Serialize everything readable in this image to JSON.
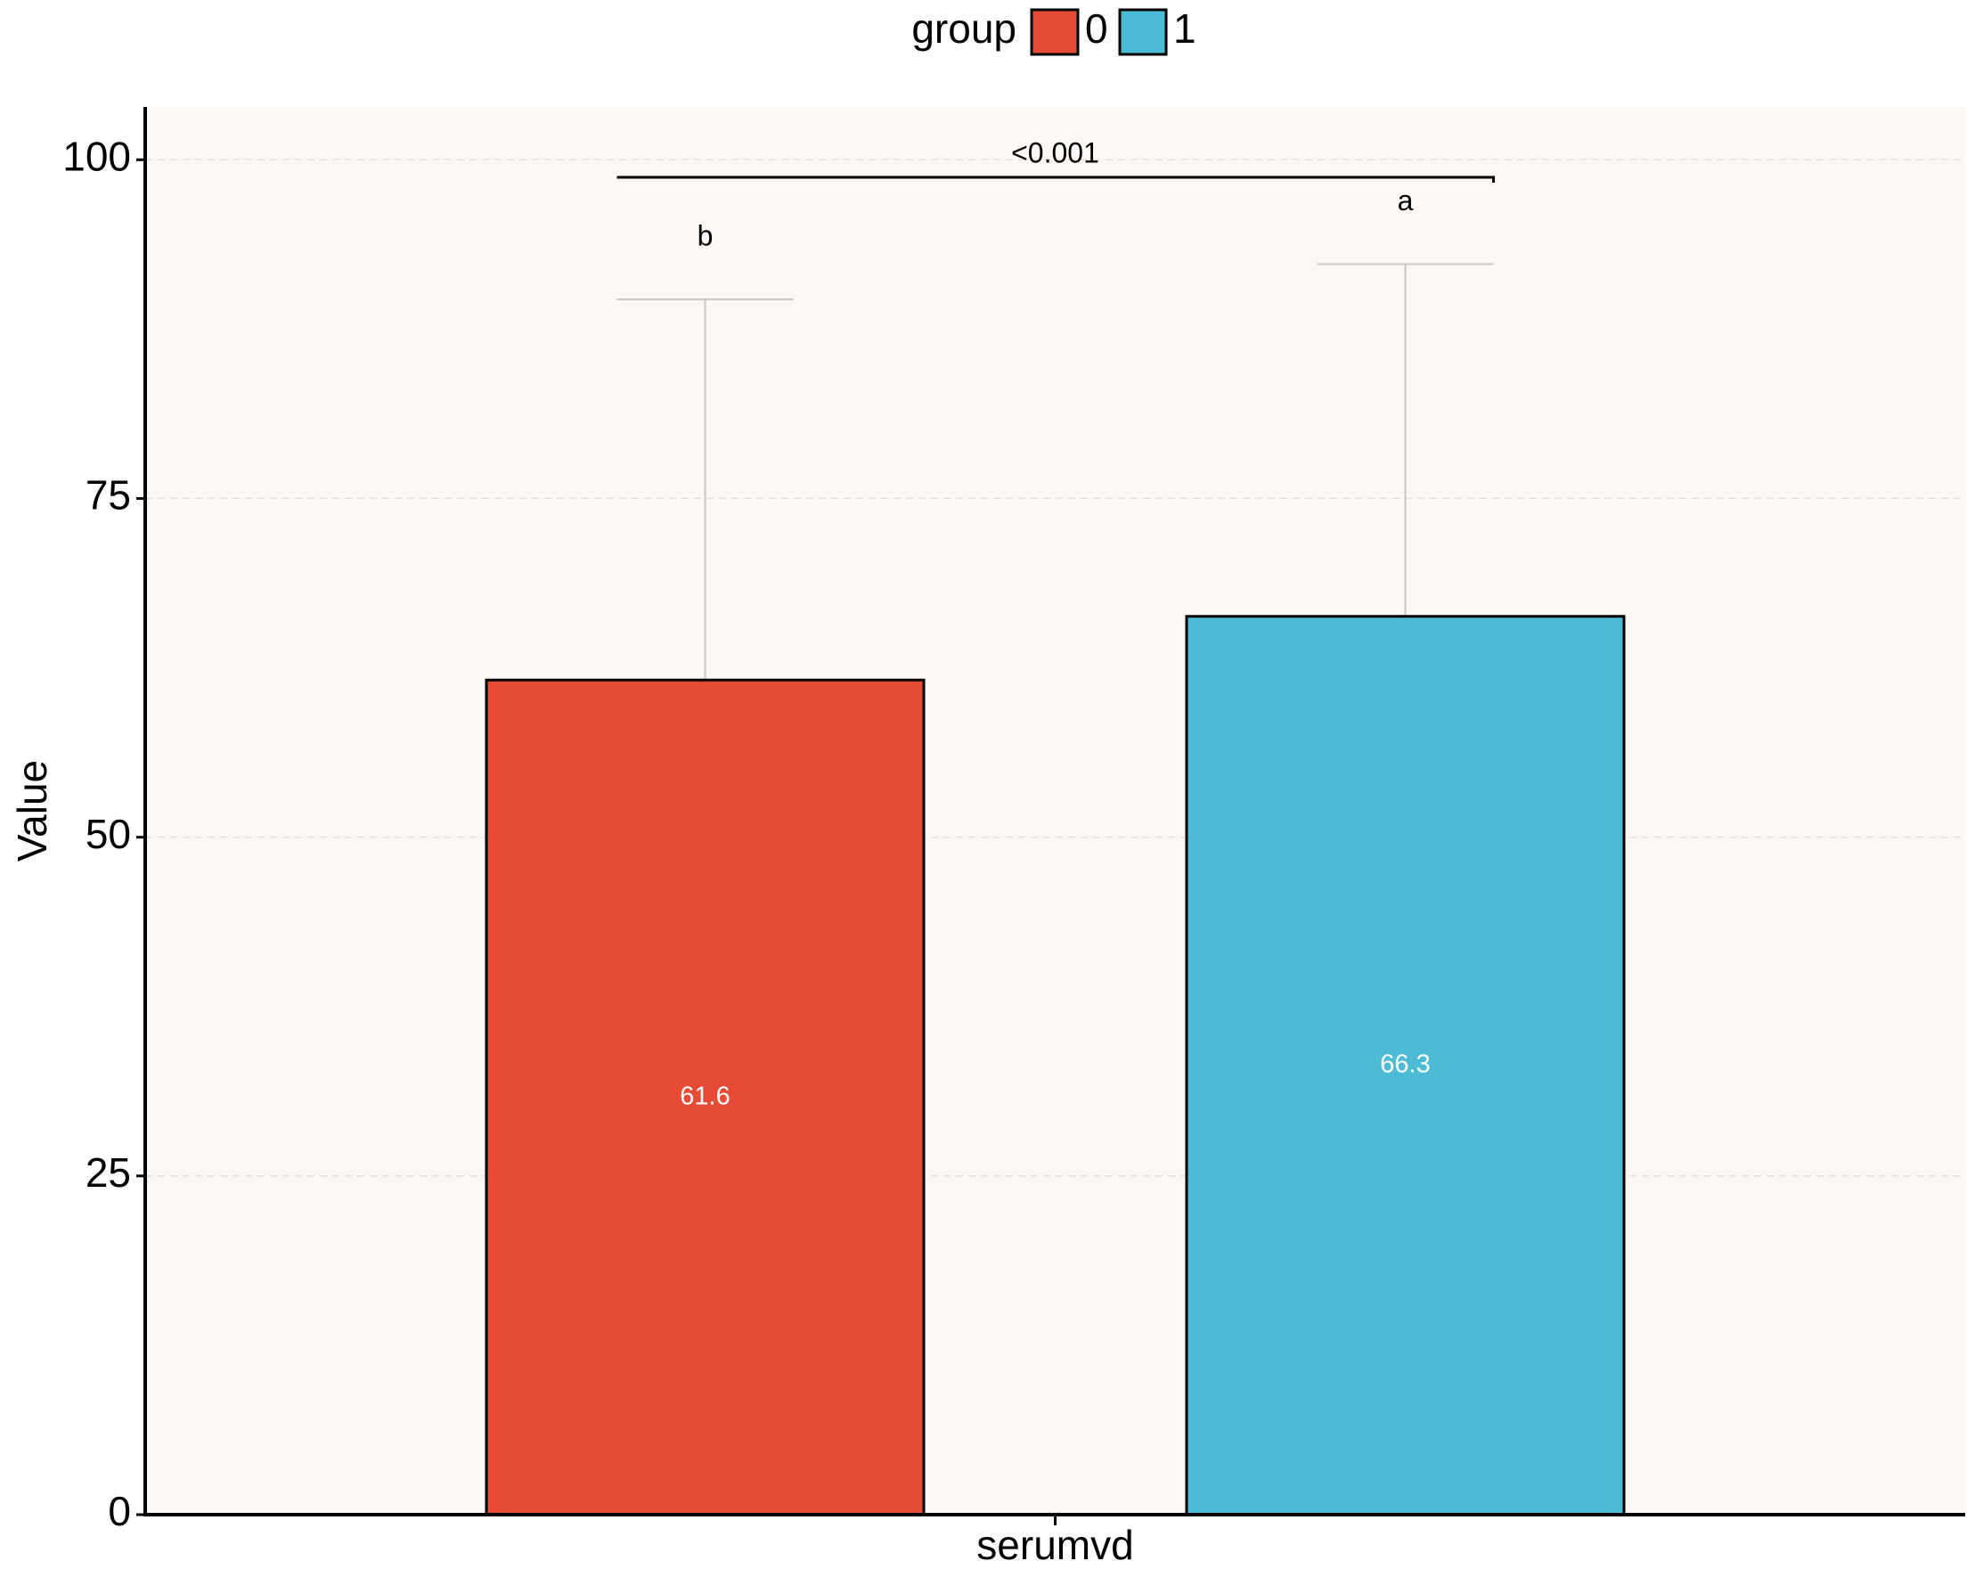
{
  "chart_data": {
    "type": "bar",
    "categories": [
      "serumvd"
    ],
    "y_label": "Value",
    "legend_title": "group",
    "legend_position": "top",
    "series": [
      {
        "name": "0",
        "color": "#e64b35",
        "values": [
          61.6
        ],
        "errors": [
          28.1
        ],
        "letters": [
          "b"
        ]
      },
      {
        "name": "1",
        "color": "#4dbbd5",
        "values": [
          66.3
        ],
        "errors": [
          26.0
        ],
        "letters": [
          "a"
        ]
      }
    ],
    "comparison_label": "<0.001",
    "ylim": [
      0,
      103.9
    ],
    "yticks": [
      0,
      25,
      50,
      75,
      100
    ],
    "grid": true
  }
}
